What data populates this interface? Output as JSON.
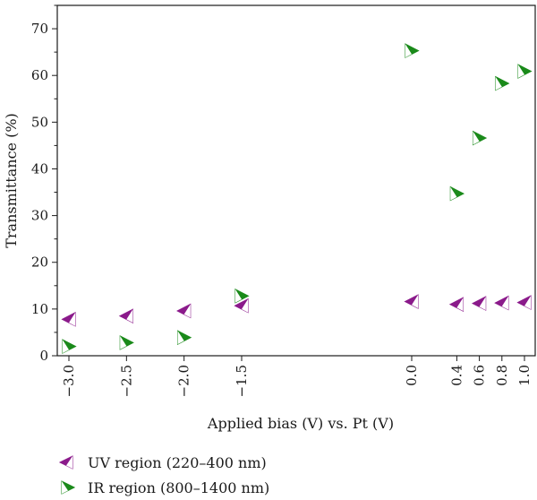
{
  "chart_data": {
    "type": "scatter",
    "xlabel": "Applied bias (V) vs. Pt (V)",
    "ylabel": "Transmittance (%)",
    "ylim": [
      0,
      75
    ],
    "yticks": [
      0,
      10,
      20,
      30,
      40,
      50,
      60,
      70
    ],
    "xticks": [
      -3.0,
      -2.5,
      -2.0,
      -1.5,
      0.0,
      0.4,
      0.6,
      0.8,
      1.0
    ],
    "xtick_labels": [
      "−3.0",
      "−2.5",
      "−2.0",
      "−1.5",
      "0.0",
      "0.4",
      "0.6",
      "0.8",
      "1.0"
    ],
    "grid": false,
    "legend_position": "bottom-left",
    "series": [
      {
        "name": "UV region (220–400 nm)",
        "marker": "triangle-left",
        "color": "#8b1a8b",
        "x": [
          -3.0,
          -2.5,
          -2.0,
          -1.5,
          0.0,
          0.4,
          0.6,
          0.8,
          1.0
        ],
        "y": [
          7.8,
          8.5,
          9.6,
          10.7,
          11.6,
          11.0,
          11.2,
          11.3,
          11.4
        ]
      },
      {
        "name": "IR region (800–1400 nm)",
        "marker": "triangle-right",
        "color": "#1a8a1a",
        "x": [
          -3.0,
          -2.5,
          -2.0,
          -1.5,
          0.0,
          0.4,
          0.6,
          0.8,
          1.0
        ],
        "y": [
          2.0,
          2.8,
          3.9,
          12.8,
          65.3,
          34.7,
          46.6,
          58.3,
          60.9
        ]
      }
    ]
  }
}
